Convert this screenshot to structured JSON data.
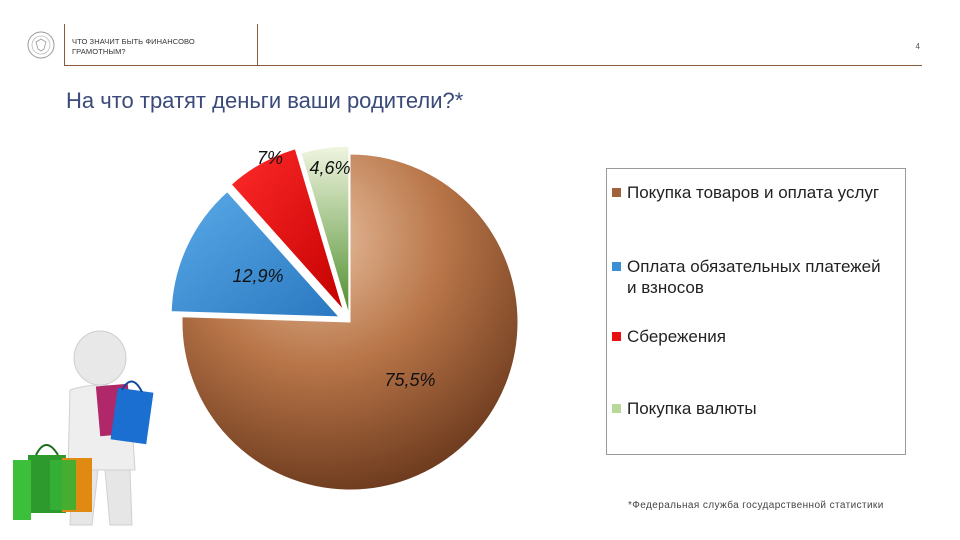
{
  "header": {
    "section_title": "ЧТО ЗНАЧИТ БЫТЬ ФИНАНСОВО ГРАМОТНЫМ?",
    "page_number": "4"
  },
  "slide": {
    "title": "На что тратят деньги ваши родители?*",
    "footnote": "*Федеральная служба государственной статистики"
  },
  "chart_data": {
    "type": "pie",
    "title": "На что тратят деньги ваши родители?*",
    "slices": [
      {
        "label": "Покупка товаров и оплата услуг",
        "value": 75.5,
        "display": "75,5%",
        "color": "#a0623a"
      },
      {
        "label": "Оплата обязательных платежей и взносов",
        "value": 12.9,
        "display": "12,9%",
        "color": "#3a8ed6"
      },
      {
        "label": "Сбережения",
        "value": 7.0,
        "display": "7%",
        "color": "#e81010"
      },
      {
        "label": "Покупка валюты",
        "value": 4.6,
        "display": "4,6%",
        "color": "#7fb45a"
      }
    ],
    "legend_position": "right",
    "exploded": true
  }
}
